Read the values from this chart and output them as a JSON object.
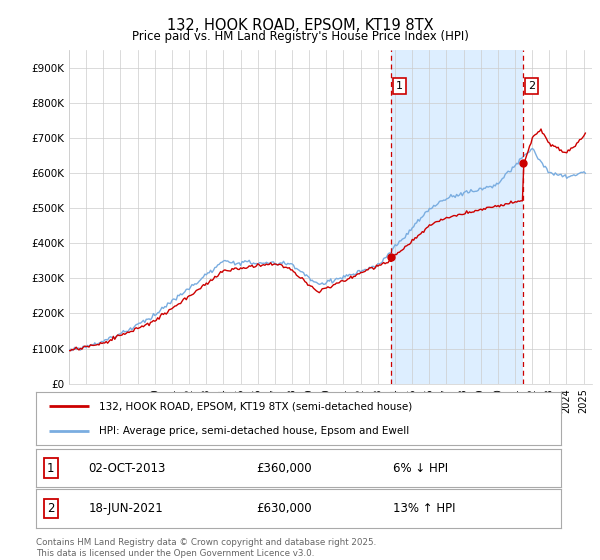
{
  "title_line1": "132, HOOK ROAD, EPSOM, KT19 8TX",
  "title_line2": "Price paid vs. HM Land Registry's House Price Index (HPI)",
  "ylabel_ticks": [
    "£0",
    "£100K",
    "£200K",
    "£300K",
    "£400K",
    "£500K",
    "£600K",
    "£700K",
    "£800K",
    "£900K"
  ],
  "ytick_vals": [
    0,
    100000,
    200000,
    300000,
    400000,
    500000,
    600000,
    700000,
    800000,
    900000
  ],
  "sale1_date": "02-OCT-2013",
  "sale1_price": 360000,
  "sale1_x": 2013.75,
  "sale1_label": "6% ↓ HPI",
  "sale2_date": "18-JUN-2021",
  "sale2_price": 630000,
  "sale2_x": 2021.46,
  "sale2_label": "13% ↑ HPI",
  "legend_label1": "132, HOOK ROAD, EPSOM, KT19 8TX (semi-detached house)",
  "legend_label2": "HPI: Average price, semi-detached house, Epsom and Ewell",
  "footer": "Contains HM Land Registry data © Crown copyright and database right 2025.\nThis data is licensed under the Open Government Licence v3.0.",
  "line_color_red": "#cc0000",
  "line_color_blue": "#7aade0",
  "vline_color": "#cc0000",
  "shade_color": "#ddeeff",
  "bg_color": "#ffffff",
  "grid_color": "#cccccc",
  "xlim_left": 1995.0,
  "xlim_right": 2025.5,
  "ylim_top": 950000
}
